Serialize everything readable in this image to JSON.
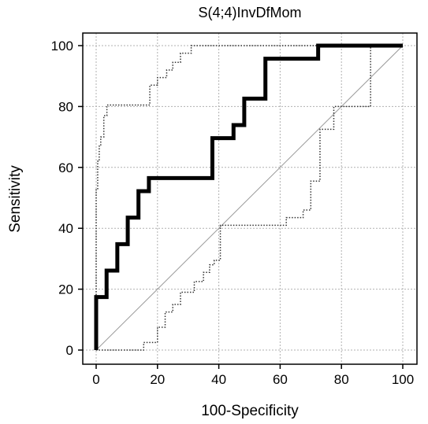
{
  "chart_data": {
    "type": "line",
    "title": "S(4;4)InvDfMom",
    "xlabel": "100-Specificity",
    "ylabel": "Sensitivity",
    "xlim": [
      0,
      100
    ],
    "ylim": [
      0,
      100
    ],
    "x_ticks": [
      0,
      20,
      40,
      60,
      80,
      100
    ],
    "y_ticks": [
      0,
      20,
      40,
      60,
      80,
      100
    ],
    "grid": true,
    "legend": "none",
    "colors": {
      "roc": "#000000",
      "ci": "#333333",
      "diagonal": "#999999",
      "grid": "#b0b0b0"
    },
    "series": [
      {
        "role": "roc-curve",
        "x": [
          0,
          0,
          3.4,
          3.4,
          6.9,
          6.9,
          10.3,
          10.3,
          13.8,
          13.8,
          17.2,
          17.2,
          37.9,
          37.9,
          44.8,
          44.8,
          48.3,
          48.3,
          55.2,
          55.2,
          72.4,
          72.4,
          100
        ],
        "y": [
          0,
          17.4,
          17.4,
          26.1,
          26.1,
          34.8,
          34.8,
          43.5,
          43.5,
          52.2,
          52.2,
          56.5,
          56.5,
          69.6,
          69.6,
          73.9,
          73.9,
          82.6,
          82.6,
          95.7,
          95.7,
          100,
          100
        ]
      },
      {
        "role": "ci-upper",
        "x": [
          0,
          0,
          0.5,
          0.5,
          1,
          1,
          1.5,
          1.5,
          2.5,
          2.5,
          3.5,
          3.5,
          17.5,
          17.5,
          20,
          20,
          23,
          23,
          25,
          25,
          27.5,
          27.5,
          31,
          31,
          100
        ],
        "y": [
          0,
          53,
          53,
          62,
          62,
          67,
          67,
          70,
          70,
          77,
          77,
          80.5,
          80.5,
          87,
          87,
          89.5,
          89.5,
          92,
          92,
          94.5,
          94.5,
          97.5,
          97.5,
          100,
          100
        ]
      },
      {
        "role": "ci-lower",
        "x": [
          0,
          15.5,
          15.5,
          20,
          20,
          22.5,
          22.5,
          25,
          25,
          27.5,
          27.5,
          32,
          32,
          35,
          35,
          37,
          37,
          38.5,
          38.5,
          40.5,
          40.5,
          62,
          62,
          67.5,
          67.5,
          70,
          70,
          73,
          73,
          77.5,
          77.5,
          89.5,
          89.5,
          100
        ],
        "y": [
          0,
          0,
          2.5,
          2.5,
          7.5,
          7.5,
          12.5,
          12.5,
          15,
          15,
          19,
          19,
          22.5,
          22.5,
          25.5,
          25.5,
          28,
          28,
          29.5,
          29.5,
          41,
          41,
          43.5,
          43.5,
          46,
          46,
          55.5,
          55.5,
          72.5,
          72.5,
          80,
          80,
          100,
          100
        ]
      },
      {
        "role": "reference-diagonal",
        "x": [
          0,
          100
        ],
        "y": [
          0,
          100
        ]
      }
    ]
  }
}
